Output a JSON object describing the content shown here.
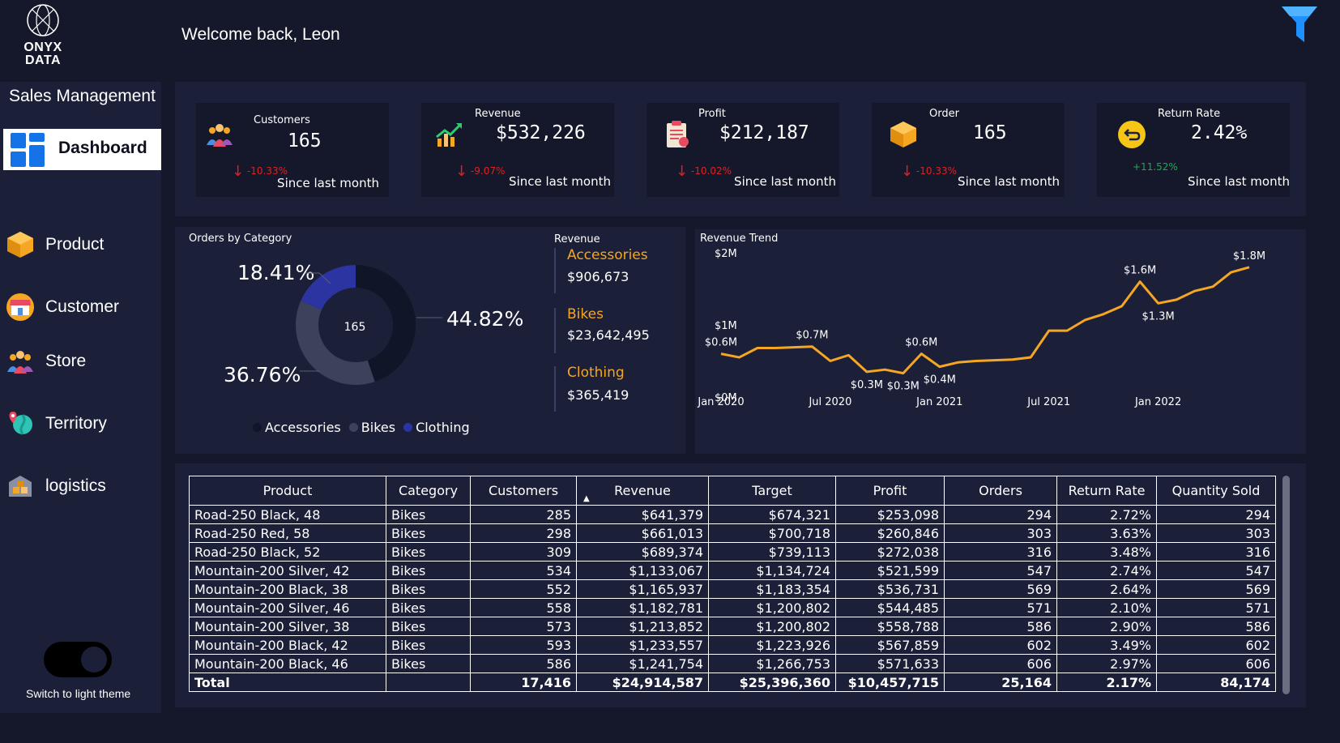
{
  "brand": {
    "line1": "ONYX",
    "line2": "DATA"
  },
  "header": {
    "welcome": "Welcome back, Leon"
  },
  "sidebar": {
    "title": "Sales Management",
    "active": {
      "label": "Dashboard",
      "icon": "dashboard-icon"
    },
    "items": [
      {
        "label": "Product",
        "icon": "box-icon"
      },
      {
        "label": "Customer",
        "icon": "shop-icon"
      },
      {
        "label": "Store",
        "icon": "people-icon"
      },
      {
        "label": "Territory",
        "icon": "map-pin-icon"
      },
      {
        "label": "logistics",
        "icon": "warehouse-icon"
      }
    ],
    "theme_toggle_label": "Switch to light theme"
  },
  "kpis": [
    {
      "label": "Customers",
      "value": "165",
      "delta": "-10.33%",
      "delta_dir": "down",
      "since": "Since last month",
      "icon": "people-icon"
    },
    {
      "label": "Revenue",
      "value": "$532,226",
      "delta": "-9.07%",
      "delta_dir": "down",
      "since": "Since last month",
      "icon": "growth-chart-icon"
    },
    {
      "label": "Profit",
      "value": "$212,187",
      "delta": "-10.02%",
      "delta_dir": "down",
      "since": "Since last month",
      "icon": "clipboard-icon"
    },
    {
      "label": "Order",
      "value": "165",
      "delta": "-10.33%",
      "delta_dir": "down",
      "since": "Since last month",
      "icon": "box-icon"
    },
    {
      "label": "Return Rate",
      "value": "2.42%",
      "delta": "+11.52%",
      "delta_dir": "up",
      "since": "Since last month",
      "icon": "return-icon"
    }
  ],
  "orders_by_category": {
    "title": "Orders by Category",
    "center_value": "165",
    "slices": [
      {
        "name": "Accessories",
        "pct": 44.82,
        "label": "44.82%",
        "color": "#111528"
      },
      {
        "name": "Bikes",
        "pct": 36.76,
        "label": "36.76%",
        "color": "#3c425c"
      },
      {
        "name": "Clothing",
        "pct": 18.41,
        "label": "18.41%",
        "color": "#2b34a0"
      }
    ],
    "legend": [
      "Accessories",
      "Bikes",
      "Clothing"
    ],
    "revenue_title": "Revenue",
    "revenue": [
      {
        "category": "Accessories",
        "value": "$906,673"
      },
      {
        "category": "Bikes",
        "value": "$23,642,495"
      },
      {
        "category": "Clothing",
        "value": "$365,419"
      }
    ]
  },
  "chart_data": {
    "type": "line",
    "title": "Revenue Trend",
    "y_ticks": [
      "$0M",
      "$1M",
      "$2M"
    ],
    "x_ticks": [
      "Jan 2020",
      "Jul 2020",
      "Jan 2021",
      "Jul 2021",
      "Jan 2022"
    ],
    "x": [
      "2020-01",
      "2020-02",
      "2020-03",
      "2020-04",
      "2020-05",
      "2020-06",
      "2020-07",
      "2020-08",
      "2020-09",
      "2020-10",
      "2020-11",
      "2020-12",
      "2021-01",
      "2021-02",
      "2021-03",
      "2021-04",
      "2021-05",
      "2021-06",
      "2021-07",
      "2021-08",
      "2021-09",
      "2021-10",
      "2021-11",
      "2021-12",
      "2022-01",
      "2022-02",
      "2022-03",
      "2022-04",
      "2022-05",
      "2022-06"
    ],
    "series": [
      {
        "values": [
          0.6,
          0.55,
          0.68,
          0.68,
          0.69,
          0.7,
          0.5,
          0.58,
          0.35,
          0.38,
          0.33,
          0.6,
          0.42,
          0.48,
          0.5,
          0.51,
          0.52,
          0.55,
          0.92,
          0.92,
          1.07,
          1.15,
          1.26,
          1.6,
          1.3,
          1.35,
          1.47,
          1.53,
          1.73,
          1.8
        ]
      }
    ],
    "point_labels": [
      {
        "index": 0,
        "text": "$0.6M",
        "pos": "above"
      },
      {
        "index": 5,
        "text": "$0.7M",
        "pos": "above"
      },
      {
        "index": 8,
        "text": "$0.3M",
        "pos": "below"
      },
      {
        "index": 10,
        "text": "$0.3M",
        "pos": "below"
      },
      {
        "index": 11,
        "text": "$0.6M",
        "pos": "above"
      },
      {
        "index": 12,
        "text": "$0.4M",
        "pos": "below"
      },
      {
        "index": 23,
        "text": "$1.6M",
        "pos": "above"
      },
      {
        "index": 24,
        "text": "$1.3M",
        "pos": "below"
      },
      {
        "index": 29,
        "text": "$1.8M",
        "pos": "above"
      }
    ],
    "ylim": [
      0,
      2
    ],
    "line_color": "#f5a623"
  },
  "table": {
    "columns": [
      "Product",
      "Category",
      "Customers",
      "Revenue",
      "Target",
      "Profit",
      "Orders",
      "Return Rate",
      "Quantity Sold"
    ],
    "rows": [
      [
        "Road-250 Black, 48",
        "Bikes",
        "285",
        "$641,379",
        "$674,321",
        "$253,098",
        "294",
        "2.72%",
        "294"
      ],
      [
        "Road-250 Red, 58",
        "Bikes",
        "298",
        "$661,013",
        "$700,718",
        "$260,846",
        "303",
        "3.63%",
        "303"
      ],
      [
        "Road-250 Black, 52",
        "Bikes",
        "309",
        "$689,374",
        "$739,113",
        "$272,038",
        "316",
        "3.48%",
        "316"
      ],
      [
        "Mountain-200 Silver, 42",
        "Bikes",
        "534",
        "$1,133,067",
        "$1,134,724",
        "$521,599",
        "547",
        "2.74%",
        "547"
      ],
      [
        "Mountain-200 Black, 38",
        "Bikes",
        "552",
        "$1,165,937",
        "$1,183,354",
        "$536,731",
        "569",
        "2.64%",
        "569"
      ],
      [
        "Mountain-200 Silver, 46",
        "Bikes",
        "558",
        "$1,182,781",
        "$1,200,802",
        "$544,485",
        "571",
        "2.10%",
        "571"
      ],
      [
        "Mountain-200 Silver, 38",
        "Bikes",
        "573",
        "$1,213,852",
        "$1,200,802",
        "$558,788",
        "586",
        "2.90%",
        "586"
      ],
      [
        "Mountain-200 Black, 42",
        "Bikes",
        "593",
        "$1,233,557",
        "$1,223,926",
        "$567,859",
        "602",
        "3.49%",
        "602"
      ],
      [
        "Mountain-200 Black, 46",
        "Bikes",
        "586",
        "$1,241,754",
        "$1,266,753",
        "$571,633",
        "606",
        "2.97%",
        "606"
      ]
    ],
    "total": [
      "Total",
      "",
      "17,416",
      "$24,914,587",
      "$25,396,360",
      "$10,457,715",
      "25,164",
      "2.17%",
      "84,174"
    ]
  },
  "colors": {
    "accent": "#f5a623",
    "negative": "#e02020",
    "positive": "#1fa84a",
    "filter": "#1e90ff"
  }
}
